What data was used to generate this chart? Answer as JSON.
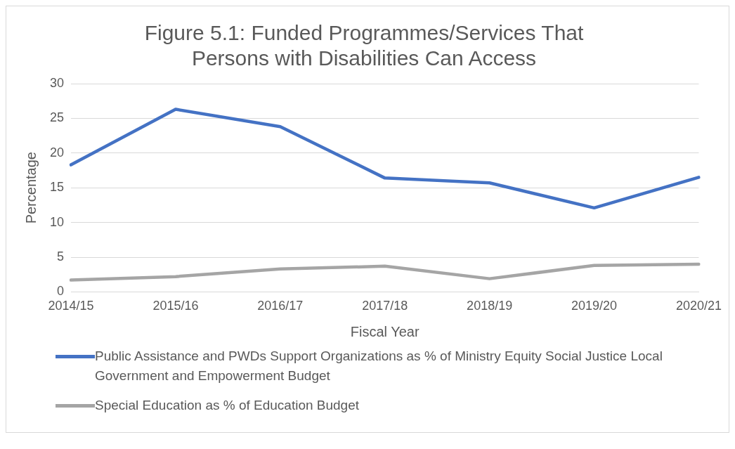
{
  "chart_data": {
    "type": "line",
    "title": "Figure 5.1: Funded Programmes/Services That Persons with Disabilities Can Access",
    "xlabel": "Fiscal Year",
    "ylabel": "Percentage",
    "categories": [
      "2014/15",
      "2015/16",
      "2016/17",
      "2017/18",
      "2018/19",
      "2019/20",
      "2020/21"
    ],
    "series": [
      {
        "name": "Public Assistance and PWDs Support Organizations as % of Ministry Equity Social Justice Local Government and Empowerment Budget",
        "color": "#4472c4",
        "values": [
          18.3,
          26.3,
          23.8,
          16.4,
          15.7,
          12.1,
          16.5
        ]
      },
      {
        "name": "Special Education as % of Education Budget",
        "color": "#a5a5a5",
        "values": [
          1.7,
          2.2,
          3.3,
          3.7,
          1.9,
          3.8,
          4.0
        ]
      }
    ],
    "ylim": [
      0,
      30
    ],
    "yticks": [
      0,
      5,
      10,
      15,
      20,
      25,
      30
    ],
    "grid": "y",
    "legend": "bottom",
    "marker": "none",
    "line_style": "solid"
  }
}
